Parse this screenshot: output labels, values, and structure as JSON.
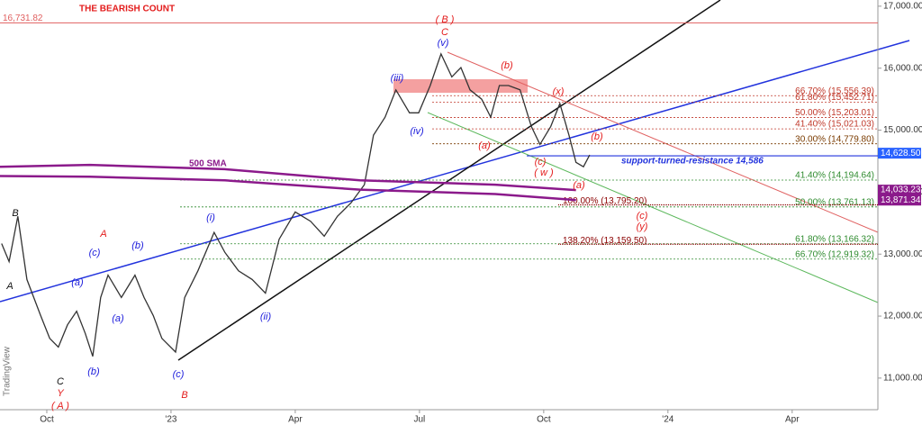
{
  "chart_data": {
    "type": "line",
    "title": "THE BEARISH COUNT",
    "series": [
      {
        "color": "#333333",
        "x": [
          -1.09,
          -0.91,
          -0.7,
          -0.48,
          -0.15,
          0.07,
          0.28,
          0.5,
          0.72,
          0.93,
          1.11,
          1.3,
          1.48,
          1.8,
          2.13,
          2.35,
          2.57,
          2.78,
          3.11,
          3.33,
          3.65,
          4.04,
          4.3,
          4.63,
          4.96,
          5.28,
          5.61,
          6.0,
          6.37,
          6.7,
          7.02,
          7.35,
          7.67,
          7.89,
          8.17,
          8.43,
          8.76,
          8.98,
          9.26,
          9.52,
          9.78,
          10.0,
          10.22,
          10.5,
          10.72,
          10.93,
          11.15,
          11.43,
          11.7,
          11.91,
          12.17,
          12.39,
          12.61,
          12.78,
          12.96,
          13.11
        ],
        "values": [
          13170,
          12880,
          13610,
          12590,
          12010,
          11640,
          11500,
          11860,
          12080,
          11720,
          11350,
          12300,
          12660,
          12300,
          12660,
          12300,
          12010,
          11640,
          11420,
          12300,
          12730,
          13350,
          13030,
          12730,
          12590,
          12370,
          13240,
          13680,
          13530,
          13290,
          13610,
          13830,
          14120,
          14920,
          15210,
          15650,
          15280,
          15280,
          15720,
          16230,
          15860,
          16010,
          15650,
          15500,
          15210,
          15720,
          15720,
          15650,
          15060,
          14770,
          15060,
          15430,
          14920,
          14480,
          14410,
          14600
        ]
      },
      {
        "name": "500 SMA",
        "color": "#8b1a8b",
        "x": [
          -1.13,
          1.04,
          4.3,
          7.56,
          10.83,
          12.78
        ],
        "values": [
          14410,
          14440,
          14370,
          14190,
          14120,
          14033.23
        ]
      },
      {
        "color": "#8b1a8b",
        "x": [
          -1.13,
          1.04,
          4.3,
          7.56,
          10.83,
          12.78
        ],
        "values": [
          14260,
          14250,
          14190,
          14040,
          13970,
          13871.34
        ]
      }
    ],
    "xlim": [
      -1.13,
      20.07
    ],
    "xticks": [
      {
        "value": 0,
        "label": "Oct"
      },
      {
        "value": 3,
        "label": "'23"
      },
      {
        "value": 6,
        "label": "Apr"
      },
      {
        "value": 9,
        "label": "Jul"
      },
      {
        "value": 12,
        "label": "Oct"
      },
      {
        "value": 15,
        "label": "'24"
      },
      {
        "value": 18,
        "label": "Apr"
      }
    ],
    "ylim": [
      10490,
      17100
    ],
    "yticks": [
      {
        "value": 11000,
        "label": "11,000.00"
      },
      {
        "value": 12000,
        "label": "12,000.00"
      },
      {
        "value": 13000,
        "label": "13,000.00"
      },
      {
        "value": 14000,
        "label": "14,000.00"
      },
      {
        "value": 15000,
        "label": "15,000.00"
      },
      {
        "value": 16000,
        "label": "16,000.00"
      },
      {
        "value": 17000,
        "label": "17,000.00"
      }
    ],
    "high_line": {
      "value": 16731.82,
      "label": "16,731.82"
    },
    "support_line": {
      "value": 14586,
      "label": "support-turned-resistance 14,586"
    },
    "price_labels": [
      {
        "value": 14628.5,
        "label": "14,628.50",
        "color": "#2962ff"
      },
      {
        "value": 14033.23,
        "label": "14,033.23",
        "color": "#8b1a8b"
      },
      {
        "value": 13871.34,
        "label": "13,871.34",
        "color": "#8b1a8b"
      }
    ],
    "levels": [
      {
        "value": 15556.39,
        "label": "66.70% (15,556.39)",
        "color": "#c0392b"
      },
      {
        "value": 15452.71,
        "label": "61.80% (15,452.71)",
        "color": "#c0392b"
      },
      {
        "value": 15203.01,
        "label": "50.00% (15,203.01)",
        "color": "#c0392b"
      },
      {
        "value": 15021.03,
        "label": "41.40% (15,021.03)",
        "color": "#c0392b"
      },
      {
        "value": 14779.8,
        "label": "30.00% (14,779.80)",
        "color": "#7a3b00"
      },
      {
        "value": 14194.64,
        "label": "41.40% (14,194.64)",
        "color": "#2e8b2e"
      },
      {
        "value": 13761.13,
        "label": "50.00% (13,761.13)",
        "color": "#2e8b2e"
      },
      {
        "value": 13166.32,
        "label": "61.80% (13,166.32)",
        "color": "#2e8b2e"
      },
      {
        "value": 12919.32,
        "label": "66.70% (12,919.32)",
        "color": "#2e8b2e"
      },
      {
        "value": 13795.2,
        "label": "100.00% (13,795.20)",
        "color": "#8b0000"
      },
      {
        "value": 13159.5,
        "label": "138.20% (13,159.50)",
        "color": "#8b0000"
      }
    ],
    "annotations": [
      {
        "text": "500 SMA",
        "color": "#8b1a8b"
      },
      {
        "text": "( B )",
        "color": "#e31b1b"
      },
      {
        "text": "C",
        "color": "#e31b1b"
      },
      {
        "text": "(v)",
        "color": "#1a1adb"
      },
      {
        "text": "(iii)",
        "color": "#1a1adb"
      },
      {
        "text": "(iv)",
        "color": "#1a1adb"
      },
      {
        "text": "(b)",
        "color": "#e31b1b"
      },
      {
        "text": "(x)",
        "color": "#e31b1b"
      },
      {
        "text": "(a)",
        "color": "#e31b1b"
      },
      {
        "text": "(c)",
        "color": "#e31b1b"
      },
      {
        "text": "( w )",
        "color": "#e31b1b"
      },
      {
        "text": "(b)",
        "color": "#e31b1b"
      },
      {
        "text": "(a)",
        "color": "#e31b1b"
      },
      {
        "text": "(c)",
        "color": "#e31b1b"
      },
      {
        "text": "(y)",
        "color": "#e31b1b"
      },
      {
        "text": "B",
        "color": "#111111"
      },
      {
        "text": "A",
        "color": "#111111"
      },
      {
        "text": "A",
        "color": "#e31b1b"
      },
      {
        "text": "(c)",
        "color": "#1a1adb"
      },
      {
        "text": "(b)",
        "color": "#1a1adb"
      },
      {
        "text": "(a)",
        "color": "#1a1adb"
      },
      {
        "text": "(a)",
        "color": "#1a1adb"
      },
      {
        "text": "(b)",
        "color": "#1a1adb"
      },
      {
        "text": "C",
        "color": "#111111"
      },
      {
        "text": "Y",
        "color": "#e31b1b"
      },
      {
        "text": "( A )",
        "color": "#e31b1b"
      },
      {
        "text": "(i)",
        "color": "#1a1adb"
      },
      {
        "text": "(ii)",
        "color": "#1a1adb"
      },
      {
        "text": "(c)",
        "color": "#1a1adb"
      },
      {
        "text": "B",
        "color": "#e31b1b"
      }
    ],
    "watermark": "TradingView"
  }
}
